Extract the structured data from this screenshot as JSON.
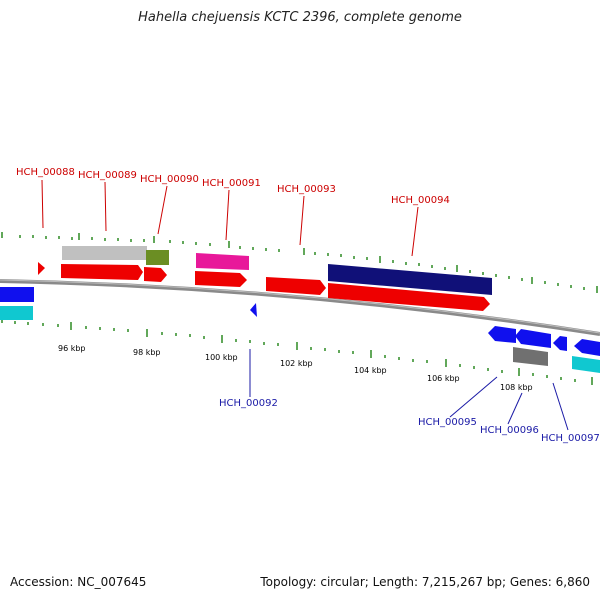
{
  "title": "Hahella chejuensis KCTC 2396, complete genome",
  "footer": {
    "accession": "Accession: NC_007645",
    "summary": "Topology: circular; Length: 7,215,267 bp; Genes: 6,860"
  },
  "colors": {
    "red": "#ee0000",
    "blue": "#1010ee",
    "navy": "#101078",
    "cyan": "#10c8d0",
    "grey": "#c0c0c0",
    "olive": "#6b8e23",
    "pink": "#e8189a",
    "darkgrey": "#707070",
    "tick": "#2e8b22",
    "label_red": "#cc0000",
    "label_blue": "#1a1aa6"
  },
  "scale_labels": [
    "96 kbp",
    "98 kbp",
    "100 kbp",
    "102 kbp",
    "104 kbp",
    "106 kbp",
    "108 kbp"
  ],
  "gene_labels_top": [
    "HCH_00088",
    "HCH_00089",
    "HCH_00090",
    "HCH_00091",
    "HCH_00093",
    "HCH_00094"
  ],
  "gene_labels_bottom": [
    "HCH_00092",
    "HCH_00095",
    "HCH_00096",
    "HCH_00097"
  ]
}
